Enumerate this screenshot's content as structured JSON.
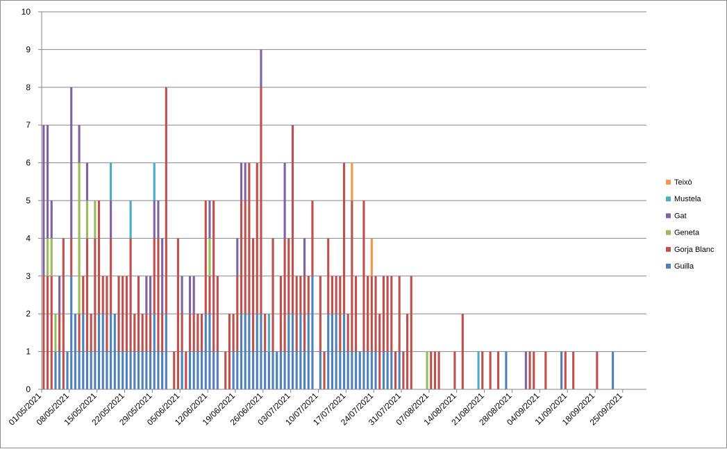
{
  "chart_data": {
    "type": "bar",
    "stacked": true,
    "title": "",
    "xlabel": "",
    "ylabel": "",
    "ylim": [
      0,
      10
    ],
    "yticks": [
      0,
      1,
      2,
      3,
      4,
      5,
      6,
      7,
      8,
      9,
      10
    ],
    "grid": true,
    "legend_position": "right",
    "x_start": "01/05/2021",
    "x_end": "30/09/2021",
    "x_tick_labels": [
      "01/05/2021",
      "08/05/2021",
      "15/05/2021",
      "22/05/2021",
      "29/05/2021",
      "05/06/2021",
      "12/06/2021",
      "19/06/2021",
      "26/06/2021",
      "03/07/2021",
      "10/07/2021",
      "17/07/2021",
      "24/07/2021",
      "31/07/2021",
      "07/08/2021",
      "14/08/2021",
      "21/08/2021",
      "28/08/2021",
      "04/09/2021",
      "11/09/2021",
      "18/09/2021",
      "25/09/2021"
    ],
    "series": [
      {
        "name": "Guilla",
        "color": "#4f81bd"
      },
      {
        "name": "Gorja Blanc",
        "color": "#c0504d"
      },
      {
        "name": "Geneta",
        "color": "#9bbb59"
      },
      {
        "name": "Gat",
        "color": "#8064a2"
      },
      {
        "name": "Mustela",
        "color": "#4bacc6"
      },
      {
        "name": "Teixò",
        "color": "#f79646"
      }
    ],
    "legend_order": [
      "Teixò",
      "Mustela",
      "Gat",
      "Geneta",
      "Gorja Blanc",
      "Guilla"
    ],
    "points": [
      {
        "date": "01/05/2021",
        "values": [
          0,
          3,
          0,
          4,
          0,
          0
        ]
      },
      {
        "date": "02/05/2021",
        "values": [
          0,
          3,
          1,
          3,
          0,
          0
        ]
      },
      {
        "date": "03/05/2021",
        "values": [
          0,
          3,
          1,
          1,
          0,
          0
        ]
      },
      {
        "date": "04/05/2021",
        "values": [
          1,
          0,
          1,
          0,
          0,
          0
        ]
      },
      {
        "date": "05/05/2021",
        "values": [
          1,
          1,
          0,
          1,
          0,
          0
        ]
      },
      {
        "date": "06/05/2021",
        "values": [
          0,
          4,
          0,
          0,
          0,
          0
        ]
      },
      {
        "date": "07/05/2021",
        "values": [
          1,
          0,
          0,
          0,
          0,
          0
        ]
      },
      {
        "date": "08/05/2021",
        "values": [
          3,
          1,
          0,
          4,
          0,
          0
        ]
      },
      {
        "date": "09/05/2021",
        "values": [
          2,
          0,
          0,
          0,
          0,
          0
        ]
      },
      {
        "date": "10/05/2021",
        "values": [
          1,
          1,
          4,
          1,
          0,
          0
        ]
      },
      {
        "date": "11/05/2021",
        "values": [
          2,
          1,
          0,
          0,
          0,
          0
        ]
      },
      {
        "date": "12/05/2021",
        "values": [
          1,
          3,
          1,
          1,
          0,
          0
        ]
      },
      {
        "date": "13/05/2021",
        "values": [
          1,
          1,
          0,
          0,
          0,
          0
        ]
      },
      {
        "date": "14/05/2021",
        "values": [
          1,
          3,
          1,
          0,
          0,
          0
        ]
      },
      {
        "date": "15/05/2021",
        "values": [
          2,
          3,
          0,
          0,
          0,
          0
        ]
      },
      {
        "date": "16/05/2021",
        "values": [
          2,
          1,
          0,
          0,
          0,
          0
        ]
      },
      {
        "date": "17/05/2021",
        "values": [
          1,
          2,
          0,
          0,
          0,
          0
        ]
      },
      {
        "date": "18/05/2021",
        "values": [
          2,
          2,
          0,
          1,
          1,
          0
        ]
      },
      {
        "date": "19/05/2021",
        "values": [
          2,
          0,
          0,
          0,
          0,
          0
        ]
      },
      {
        "date": "20/05/2021",
        "values": [
          1,
          2,
          0,
          0,
          0,
          0
        ]
      },
      {
        "date": "21/05/2021",
        "values": [
          1,
          2,
          0,
          0,
          0,
          0
        ]
      },
      {
        "date": "22/05/2021",
        "values": [
          1,
          2,
          0,
          0,
          0,
          0
        ]
      },
      {
        "date": "23/05/2021",
        "values": [
          1,
          3,
          0,
          0,
          1,
          0
        ]
      },
      {
        "date": "24/05/2021",
        "values": [
          1,
          1,
          0,
          0,
          0,
          0
        ]
      },
      {
        "date": "25/05/2021",
        "values": [
          1,
          2,
          0,
          0,
          0,
          0
        ]
      },
      {
        "date": "26/05/2021",
        "values": [
          1,
          1,
          0,
          0,
          0,
          0
        ]
      },
      {
        "date": "27/05/2021",
        "values": [
          1,
          1,
          0,
          1,
          0,
          0
        ]
      },
      {
        "date": "28/05/2021",
        "values": [
          1,
          1,
          0,
          1,
          0,
          0
        ]
      },
      {
        "date": "29/05/2021",
        "values": [
          2,
          2,
          0,
          1,
          1,
          0
        ]
      },
      {
        "date": "30/05/2021",
        "values": [
          1,
          3,
          0,
          1,
          0,
          0
        ]
      },
      {
        "date": "31/05/2021",
        "values": [
          1,
          1,
          0,
          2,
          0,
          0
        ]
      },
      {
        "date": "01/06/2021",
        "values": [
          2,
          6,
          0,
          0,
          0,
          0
        ]
      },
      {
        "date": "02/06/2021",
        "values": [
          0,
          0,
          0,
          0,
          0,
          0
        ]
      },
      {
        "date": "03/06/2021",
        "values": [
          0,
          1,
          0,
          0,
          0,
          0
        ]
      },
      {
        "date": "04/06/2021",
        "values": [
          0,
          4,
          0,
          0,
          0,
          0
        ]
      },
      {
        "date": "05/06/2021",
        "values": [
          1,
          1,
          0,
          1,
          0,
          0
        ]
      },
      {
        "date": "06/06/2021",
        "values": [
          0,
          1,
          0,
          0,
          0,
          0
        ]
      },
      {
        "date": "07/06/2021",
        "values": [
          1,
          1,
          0,
          1,
          0,
          0
        ]
      },
      {
        "date": "08/06/2021",
        "values": [
          1,
          1,
          0,
          1,
          0,
          0
        ]
      },
      {
        "date": "09/06/2021",
        "values": [
          1,
          1,
          0,
          0,
          0,
          0
        ]
      },
      {
        "date": "10/06/2021",
        "values": [
          1,
          1,
          0,
          0,
          0,
          0
        ]
      },
      {
        "date": "11/06/2021",
        "values": [
          2,
          3,
          0,
          0,
          0,
          0
        ]
      },
      {
        "date": "12/06/2021",
        "values": [
          2,
          1,
          1,
          1,
          0,
          0
        ]
      },
      {
        "date": "13/06/2021",
        "values": [
          1,
          4,
          0,
          0,
          0,
          0
        ]
      },
      {
        "date": "14/06/2021",
        "values": [
          1,
          2,
          0,
          0,
          0,
          0
        ]
      },
      {
        "date": "15/06/2021",
        "values": [
          0,
          0,
          0,
          0,
          0,
          0
        ]
      },
      {
        "date": "16/06/2021",
        "values": [
          0,
          1,
          0,
          0,
          0,
          0
        ]
      },
      {
        "date": "17/06/2021",
        "values": [
          0,
          2,
          0,
          0,
          0,
          0
        ]
      },
      {
        "date": "18/06/2021",
        "values": [
          1,
          1,
          0,
          0,
          0,
          0
        ]
      },
      {
        "date": "19/06/2021",
        "values": [
          1,
          2,
          0,
          1,
          0,
          0
        ]
      },
      {
        "date": "20/06/2021",
        "values": [
          2,
          3,
          0,
          1,
          0,
          0
        ]
      },
      {
        "date": "21/06/2021",
        "values": [
          2,
          3,
          0,
          1,
          0,
          0
        ]
      },
      {
        "date": "22/06/2021",
        "values": [
          2,
          4,
          0,
          0,
          0,
          0
        ]
      },
      {
        "date": "23/06/2021",
        "values": [
          1,
          3,
          0,
          0,
          0,
          0
        ]
      },
      {
        "date": "24/06/2021",
        "values": [
          2,
          4,
          0,
          0,
          0,
          0
        ]
      },
      {
        "date": "25/06/2021",
        "values": [
          2,
          6,
          0,
          1,
          0,
          0
        ]
      },
      {
        "date": "26/06/2021",
        "values": [
          1,
          1,
          0,
          0,
          0,
          0
        ]
      },
      {
        "date": "27/06/2021",
        "values": [
          1,
          0,
          0,
          0,
          1,
          0
        ]
      },
      {
        "date": "28/06/2021",
        "values": [
          1,
          3,
          0,
          0,
          0,
          0
        ]
      },
      {
        "date": "29/06/2021",
        "values": [
          1,
          0,
          0,
          0,
          0,
          0
        ]
      },
      {
        "date": "30/06/2021",
        "values": [
          1,
          2,
          0,
          0,
          0,
          0
        ]
      },
      {
        "date": "01/07/2021",
        "values": [
          1,
          3,
          0,
          2,
          0,
          0
        ]
      },
      {
        "date": "02/07/2021",
        "values": [
          2,
          2,
          0,
          0,
          0,
          0
        ]
      },
      {
        "date": "03/07/2021",
        "values": [
          2,
          5,
          0,
          0,
          0,
          0
        ]
      },
      {
        "date": "04/07/2021",
        "values": [
          1,
          2,
          0,
          0,
          0,
          0
        ]
      },
      {
        "date": "05/07/2021",
        "values": [
          2,
          1,
          0,
          0,
          0,
          0
        ]
      },
      {
        "date": "06/07/2021",
        "values": [
          1,
          2,
          0,
          1,
          0,
          0
        ]
      },
      {
        "date": "07/07/2021",
        "values": [
          2,
          1,
          0,
          0,
          0,
          0
        ]
      },
      {
        "date": "08/07/2021",
        "values": [
          3,
          2,
          0,
          0,
          0,
          0
        ]
      },
      {
        "date": "09/07/2021",
        "values": [
          0,
          0,
          0,
          0,
          0,
          0
        ]
      },
      {
        "date": "10/07/2021",
        "values": [
          1,
          2,
          0,
          0,
          0,
          0
        ]
      },
      {
        "date": "11/07/2021",
        "values": [
          0,
          1,
          0,
          0,
          0,
          0
        ]
      },
      {
        "date": "12/07/2021",
        "values": [
          2,
          2,
          0,
          0,
          0,
          0
        ]
      },
      {
        "date": "13/07/2021",
        "values": [
          2,
          1,
          0,
          0,
          0,
          0
        ]
      },
      {
        "date": "14/07/2021",
        "values": [
          2,
          1,
          0,
          0,
          0,
          0
        ]
      },
      {
        "date": "15/07/2021",
        "values": [
          1,
          2,
          0,
          0,
          0,
          0
        ]
      },
      {
        "date": "16/07/2021",
        "values": [
          2,
          4,
          0,
          0,
          0,
          0
        ]
      },
      {
        "date": "17/07/2021",
        "values": [
          1,
          1,
          0,
          0,
          0,
          0
        ]
      },
      {
        "date": "18/07/2021",
        "values": [
          1,
          4,
          0,
          0,
          0,
          1
        ]
      },
      {
        "date": "19/07/2021",
        "values": [
          1,
          2,
          0,
          0,
          0,
          0
        ]
      },
      {
        "date": "20/07/2021",
        "values": [
          1,
          0,
          0,
          0,
          0,
          0
        ]
      },
      {
        "date": "21/07/2021",
        "values": [
          1,
          4,
          0,
          0,
          0,
          0
        ]
      },
      {
        "date": "22/07/2021",
        "values": [
          1,
          2,
          0,
          0,
          0,
          0
        ]
      },
      {
        "date": "23/07/2021",
        "values": [
          1,
          2,
          0,
          0,
          0,
          1
        ]
      },
      {
        "date": "24/07/2021",
        "values": [
          1,
          2,
          0,
          0,
          0,
          0
        ]
      },
      {
        "date": "25/07/2021",
        "values": [
          0,
          2,
          0,
          0,
          0,
          0
        ]
      },
      {
        "date": "26/07/2021",
        "values": [
          1,
          2,
          0,
          0,
          0,
          0
        ]
      },
      {
        "date": "27/07/2021",
        "values": [
          1,
          2,
          0,
          0,
          0,
          0
        ]
      },
      {
        "date": "28/07/2021",
        "values": [
          1,
          2,
          0,
          0,
          0,
          0
        ]
      },
      {
        "date": "29/07/2021",
        "values": [
          0,
          1,
          0,
          0,
          0,
          0
        ]
      },
      {
        "date": "30/07/2021",
        "values": [
          1,
          2,
          0,
          0,
          0,
          0
        ]
      },
      {
        "date": "31/07/2021",
        "values": [
          0,
          1,
          0,
          0,
          0,
          0
        ]
      },
      {
        "date": "01/08/2021",
        "values": [
          0,
          2,
          0,
          0,
          0,
          0
        ]
      },
      {
        "date": "02/08/2021",
        "values": [
          0,
          3,
          0,
          0,
          0,
          0
        ]
      },
      {
        "date": "06/08/2021",
        "values": [
          0,
          0,
          1,
          0,
          0,
          0
        ]
      },
      {
        "date": "07/08/2021",
        "values": [
          0,
          1,
          0,
          0,
          0,
          0
        ]
      },
      {
        "date": "08/08/2021",
        "values": [
          0,
          1,
          0,
          0,
          0,
          0
        ]
      },
      {
        "date": "09/08/2021",
        "values": [
          0,
          1,
          0,
          0,
          0,
          0
        ]
      },
      {
        "date": "13/08/2021",
        "values": [
          0,
          1,
          0,
          0,
          0,
          0
        ]
      },
      {
        "date": "15/08/2021",
        "values": [
          0,
          2,
          0,
          0,
          0,
          0
        ]
      },
      {
        "date": "19/08/2021",
        "values": [
          0,
          0,
          0,
          0,
          1,
          0
        ]
      },
      {
        "date": "20/08/2021",
        "values": [
          0,
          1,
          0,
          0,
          0,
          0
        ]
      },
      {
        "date": "22/08/2021",
        "values": [
          0,
          1,
          0,
          0,
          0,
          0
        ]
      },
      {
        "date": "24/08/2021",
        "values": [
          0,
          1,
          0,
          0,
          0,
          0
        ]
      },
      {
        "date": "26/08/2021",
        "values": [
          1,
          0,
          0,
          0,
          0,
          0
        ]
      },
      {
        "date": "31/08/2021",
        "values": [
          0,
          0,
          0,
          1,
          0,
          0
        ]
      },
      {
        "date": "01/09/2021",
        "values": [
          0,
          1,
          0,
          0,
          0,
          0
        ]
      },
      {
        "date": "02/09/2021",
        "values": [
          0,
          1,
          0,
          0,
          0,
          0
        ]
      },
      {
        "date": "05/09/2021",
        "values": [
          0,
          1,
          0,
          0,
          0,
          0
        ]
      },
      {
        "date": "09/09/2021",
        "values": [
          1,
          0,
          0,
          0,
          0,
          0
        ]
      },
      {
        "date": "10/09/2021",
        "values": [
          0,
          1,
          0,
          0,
          0,
          0
        ]
      },
      {
        "date": "12/09/2021",
        "values": [
          0,
          1,
          0,
          0,
          0,
          0
        ]
      },
      {
        "date": "18/09/2021",
        "values": [
          0,
          1,
          0,
          0,
          0,
          0
        ]
      },
      {
        "date": "22/09/2021",
        "values": [
          1,
          0,
          0,
          0,
          0,
          0
        ]
      }
    ]
  }
}
